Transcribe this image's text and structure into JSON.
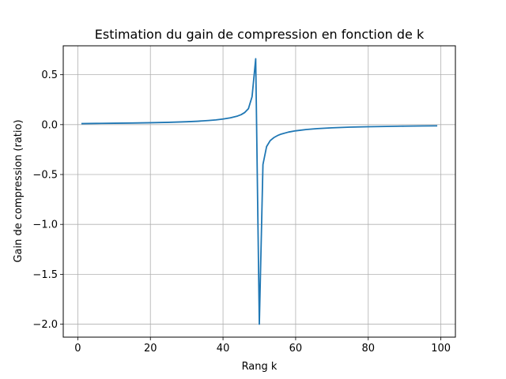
{
  "chart_data": {
    "type": "line",
    "title": "Estimation du gain de compression en fonction de k",
    "xlabel": "Rang k",
    "ylabel": "Gain de compression (ratio)",
    "xlim": [
      -4,
      104
    ],
    "ylim": [
      -2.13,
      0.79
    ],
    "xticks": [
      0,
      20,
      40,
      60,
      80,
      100
    ],
    "yticks": [
      0.5,
      0.0,
      -0.5,
      -1.0,
      -1.5,
      -2.0
    ],
    "xtick_labels": [
      "0",
      "20",
      "40",
      "60",
      "80",
      "100"
    ],
    "ytick_labels": [
      "0.5",
      "0.0",
      "−0.5",
      "−1.0",
      "−1.5",
      "−2.0"
    ],
    "grid": true,
    "line_color": "#1f77b4",
    "series": [
      {
        "x": [
          1,
          5,
          10,
          15,
          20,
          25,
          30,
          33,
          36,
          38,
          40,
          42,
          44,
          45,
          46,
          47,
          48,
          49,
          50,
          51,
          52,
          53,
          54,
          55,
          56,
          58,
          60,
          63,
          66,
          70,
          75,
          80,
          85,
          90,
          95,
          99
        ],
        "y": [
          0.01,
          0.012,
          0.014,
          0.016,
          0.019,
          0.023,
          0.029,
          0.034,
          0.041,
          0.047,
          0.056,
          0.068,
          0.086,
          0.1,
          0.122,
          0.16,
          0.28,
          0.66,
          -2.0,
          -0.4,
          -0.22,
          -0.16,
          -0.13,
          -0.11,
          -0.095,
          -0.075,
          -0.062,
          -0.049,
          -0.04,
          -0.032,
          -0.025,
          -0.021,
          -0.018,
          -0.015,
          -0.013,
          -0.012
        ]
      }
    ]
  }
}
